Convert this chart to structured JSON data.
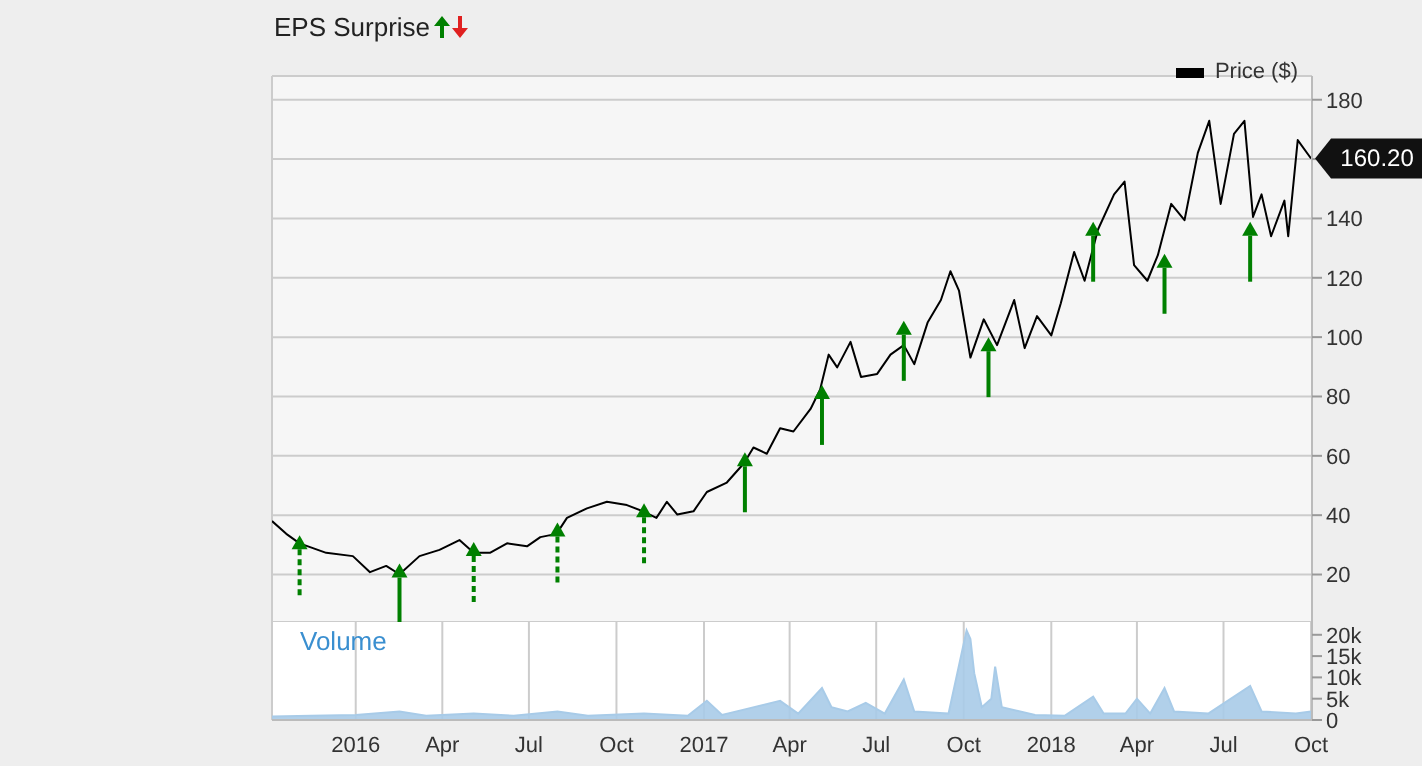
{
  "chart_data": [
    {
      "type": "line",
      "title": "EPS Surprise",
      "xlim": [
        "2015-10-05",
        "2018-10-02"
      ],
      "ylim": [
        4,
        188
      ],
      "yticks": [
        20,
        40,
        60,
        80,
        100,
        120,
        140,
        {
          "value": 160,
          "label": null
        },
        180
      ],
      "xticks": [
        {
          "value": "2016-01-01",
          "label": null
        },
        {
          "value": "2016-04-01",
          "label": null
        },
        {
          "value": "2016-07-01",
          "label": null
        },
        {
          "value": "2016-10-01",
          "label": null
        },
        {
          "value": "2017-01-01",
          "label": null
        },
        {
          "value": "2017-04-01",
          "label": null
        },
        {
          "value": "2017-07-01",
          "label": null
        },
        {
          "value": "2017-10-01",
          "label": null
        },
        {
          "value": "2018-01-01",
          "label": null
        },
        {
          "value": "2018-04-01",
          "label": null
        },
        {
          "value": "2018-07-01",
          "label": null
        },
        {
          "value": "2018-10-01",
          "label": null
        }
      ],
      "tick_labels": "y",
      "grid": true,
      "legend": "top right",
      "annotations": [
        {
          "text": "160.20",
          "x": "2018-10-01",
          "y": 160.2
        }
      ],
      "series": [
        {
          "name": "Price ($)",
          "color": "#000000",
          "x": [
            "2015-10-05",
            "2015-10-20",
            "2015-11-03",
            "2015-12-01",
            "2015-12-29",
            "2016-01-16",
            "2016-02-02",
            "2016-02-16",
            "2016-03-08",
            "2016-03-29",
            "2016-04-19",
            "2016-05-04",
            "2016-05-21",
            "2016-06-08",
            "2016-06-29",
            "2016-07-13",
            "2016-07-30",
            "2016-08-10",
            "2016-08-31",
            "2016-09-21",
            "2016-10-12",
            "2016-10-29",
            "2016-11-12",
            "2016-11-23",
            "2016-12-04",
            "2016-12-21",
            "2017-01-04",
            "2017-01-25",
            "2017-02-12",
            "2017-02-22",
            "2017-03-08",
            "2017-03-22",
            "2017-04-05",
            "2017-04-23",
            "2017-05-03",
            "2017-05-12",
            "2017-05-21",
            "2017-06-04",
            "2017-06-15",
            "2017-07-02",
            "2017-07-16",
            "2017-07-30",
            "2017-08-10",
            "2017-08-24",
            "2017-09-07",
            "2017-09-17",
            "2017-09-26",
            "2017-10-08",
            "2017-10-22",
            "2017-11-05",
            "2017-11-23",
            "2017-12-04",
            "2017-12-17",
            "2018-01-01",
            "2018-01-11",
            "2018-01-25",
            "2018-02-05",
            "2018-02-19",
            "2018-03-08",
            "2018-03-19",
            "2018-03-29",
            "2018-04-12",
            "2018-04-23",
            "2018-05-07",
            "2018-05-21",
            "2018-06-04",
            "2018-06-16",
            "2018-06-28",
            "2018-07-12",
            "2018-07-23",
            "2018-08-01",
            "2018-08-10",
            "2018-08-20",
            "2018-09-03",
            "2018-09-07",
            "2018-09-17",
            "2018-10-01"
          ],
          "values": [
            38,
            33.7,
            30.5,
            27.3,
            26.2,
            20.8,
            22.9,
            20.1,
            26.2,
            28.3,
            31.6,
            27.3,
            27.3,
            30.5,
            29.5,
            32.6,
            33.7,
            39.1,
            42.3,
            44.5,
            43.4,
            41.3,
            39.1,
            44.5,
            40.2,
            41.3,
            47.8,
            51,
            57.5,
            62.8,
            60.7,
            69.3,
            68.2,
            75.8,
            82.3,
            94.1,
            89.8,
            98.4,
            86.6,
            87.6,
            94.1,
            97.3,
            90.9,
            104.9,
            112.5,
            122.2,
            115.7,
            93.1,
            106,
            97.3,
            112.5,
            96.3,
            107.1,
            100.6,
            111.4,
            128.7,
            119,
            136.2,
            148.1,
            152.4,
            124.3,
            119,
            127.6,
            144.9,
            139.4,
            162.1,
            172.9,
            144.9,
            168.5,
            172.9,
            140.5,
            148.1,
            134,
            146,
            134,
            166.4,
            160.2
          ]
        },
        {
          "type": "scatter",
          "color": "#008000",
          "line_style": "dashed",
          "x": [
            "2015-11-03",
            "2016-05-04",
            "2016-07-31",
            "2016-10-30"
          ],
          "values": [
            30.5,
            28.3,
            34.8,
            41.3
          ]
        },
        {
          "type": "scatter",
          "color": "#008000",
          "line_style": "solid",
          "x": [
            "2016-02-16",
            "2017-02-13",
            "2017-05-05",
            "2017-07-30",
            "2017-10-27",
            "2018-02-14",
            "2018-04-30",
            "2018-07-29"
          ],
          "values": [
            21,
            58.5,
            81.2,
            102.8,
            97.3,
            136.2,
            125.4,
            136.2
          ]
        }
      ]
    },
    {
      "type": "area",
      "title": "Volume",
      "xlim": [
        "2015-10-05",
        "2018-10-02"
      ],
      "ylim": [
        0,
        23000
      ],
      "yticks": [
        0,
        {
          "value": 5000,
          "label": "5k"
        },
        {
          "value": 10000,
          "label": "10k"
        },
        {
          "value": 15000,
          "label": "15k"
        },
        {
          "value": 20000,
          "label": "20k"
        }
      ],
      "xticks": [
        {
          "value": "2016-01-01",
          "label": "2016"
        },
        {
          "value": "2016-04-01",
          "label": "Apr"
        },
        {
          "value": "2016-07-01",
          "label": "Jul"
        },
        {
          "value": "2016-10-01",
          "label": "Oct"
        },
        {
          "value": "2017-01-01",
          "label": "2017"
        },
        {
          "value": "2017-04-01",
          "label": "Apr"
        },
        {
          "value": "2017-07-01",
          "label": "Jul"
        },
        {
          "value": "2017-10-01",
          "label": "Oct"
        },
        {
          "value": "2018-01-01",
          "label": "2018"
        },
        {
          "value": "2018-04-01",
          "label": "Apr"
        },
        {
          "value": "2018-07-01",
          "label": "Jul"
        },
        {
          "value": "2018-10-01",
          "label": "Oct"
        }
      ],
      "grid": "x",
      "series": [
        {
          "color": "#a8cbe8",
          "x": [
            "2015-10-05",
            "2015-11-15",
            "2016-01-01",
            "2016-02-16",
            "2016-03-15",
            "2016-05-04",
            "2016-06-15",
            "2016-07-31",
            "2016-09-01",
            "2016-10-30",
            "2016-12-15",
            "2017-01-04",
            "2017-01-20",
            "2017-02-13",
            "2017-03-22",
            "2017-04-10",
            "2017-05-05",
            "2017-05-15",
            "2017-06-01",
            "2017-06-20",
            "2017-07-10",
            "2017-07-30",
            "2017-08-10",
            "2017-09-15",
            "2017-10-04",
            "2017-10-08",
            "2017-10-12",
            "2017-10-20",
            "2017-10-30",
            "2017-11-03",
            "2017-11-10",
            "2017-12-15",
            "2018-01-15",
            "2018-02-14",
            "2018-02-25",
            "2018-03-20",
            "2018-04-01",
            "2018-04-15",
            "2018-04-30",
            "2018-05-10",
            "2018-06-15",
            "2018-07-29",
            "2018-08-10",
            "2018-09-15",
            "2018-10-01"
          ],
          "values": [
            800,
            1000,
            1200,
            2000,
            1000,
            1500,
            1000,
            2000,
            1000,
            1500,
            1000,
            4500,
            1200,
            2500,
            4500,
            1500,
            7500,
            3000,
            2000,
            4000,
            1500,
            9500,
            2000,
            1500,
            21000,
            19000,
            11000,
            3000,
            5000,
            12500,
            3000,
            1200,
            1000,
            5500,
            1500,
            1500,
            5000,
            1500,
            7500,
            2000,
            1500,
            8000,
            2000,
            1500,
            2000
          ]
        }
      ]
    }
  ]
}
